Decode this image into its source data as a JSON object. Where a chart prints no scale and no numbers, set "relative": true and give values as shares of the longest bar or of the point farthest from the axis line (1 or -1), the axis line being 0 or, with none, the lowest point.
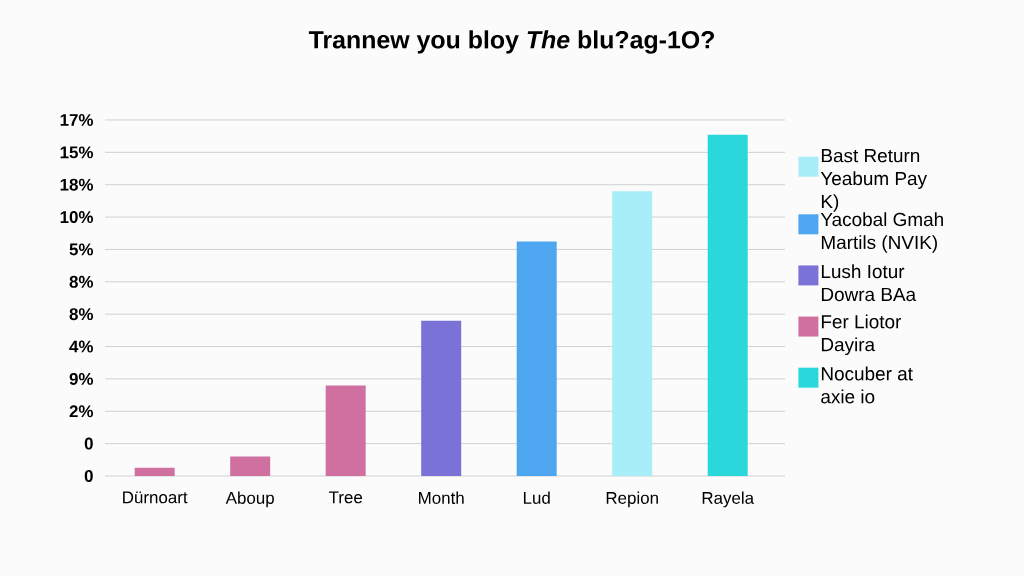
{
  "chart_data": {
    "type": "bar",
    "title": "Trannew you bloy *The* blu?ag-1O?",
    "categories": [
      "Dürnoart",
      "Aboup",
      "Tree",
      "Month",
      "Lud",
      "Repion",
      "Rayela"
    ],
    "series": [
      {
        "name": "Bast Return Yeabum Pay K)",
        "color": "#a8eef8",
        "values": [
          null,
          null,
          null,
          null,
          null,
          0.834,
          null
        ]
      },
      {
        "name": "Yacobal Gmah Martils (NVIK)",
        "color": "#4ea6f0",
        "values": [
          null,
          null,
          null,
          null,
          0.687,
          null,
          null
        ]
      },
      {
        "name": "Lush Iotur Dowra BAa",
        "color": "#7a72d6",
        "values": [
          null,
          null,
          null,
          0.455,
          null,
          null,
          null
        ]
      },
      {
        "name": "Fer Liotor Dayira",
        "color": "#d070a0",
        "values": [
          0.024,
          0.057,
          0.265,
          null,
          null,
          null,
          null
        ]
      },
      {
        "name": "Nocuber at axie io",
        "color": "#2ad8dc",
        "values": [
          null,
          null,
          null,
          null,
          null,
          null,
          1
        ]
      }
    ],
    "relative": true,
    "annotations": [
      "17%",
      "15%",
      "18%",
      "10%",
      "5%",
      "8%",
      "8%",
      "4%",
      "9%",
      "2%",
      "0",
      "0"
    ],
    "grid": "y",
    "legend": "right"
  }
}
